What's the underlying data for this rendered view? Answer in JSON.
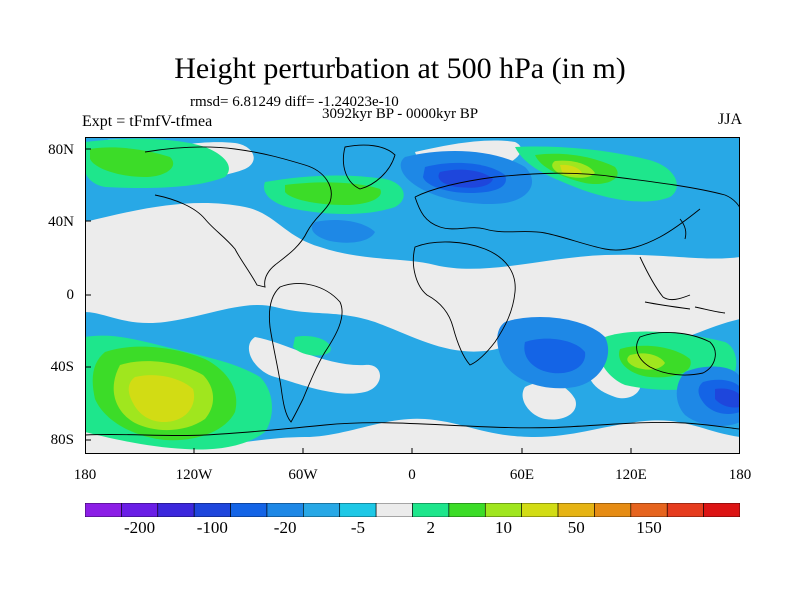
{
  "title": "Height perturbation at 500 hPa (in m)",
  "stats": "rmsd= 6.81249 diff= -1.24023e-10",
  "period": "3092kyr BP - 0000kyr BP",
  "experiment": "Expt = tFmfV-tfmea",
  "season": "JJA",
  "lat_labels": [
    "80N",
    "40N",
    "0",
    "40S",
    "80S"
  ],
  "lon_labels": [
    "180",
    "120W",
    "60W",
    "0",
    "60E",
    "120E",
    "180"
  ],
  "colorbar": {
    "labels": [
      "-200",
      "-100",
      "-20",
      "-5",
      "2",
      "10",
      "50",
      "150"
    ],
    "colors": [
      "#8c1ee6",
      "#6a1ee6",
      "#3c28dc",
      "#1e46dc",
      "#1464e6",
      "#1e88e6",
      "#28a8e6",
      "#1ec8e6",
      "#ececec",
      "#1ee68c",
      "#3cdc28",
      "#a0e61e",
      "#d2dc14",
      "#e6b414",
      "#e68c14",
      "#e6641e",
      "#e63c1e",
      "#dc1414"
    ]
  },
  "colors": {
    "ocean_neutral": "#ececec",
    "coast": "#000000"
  }
}
